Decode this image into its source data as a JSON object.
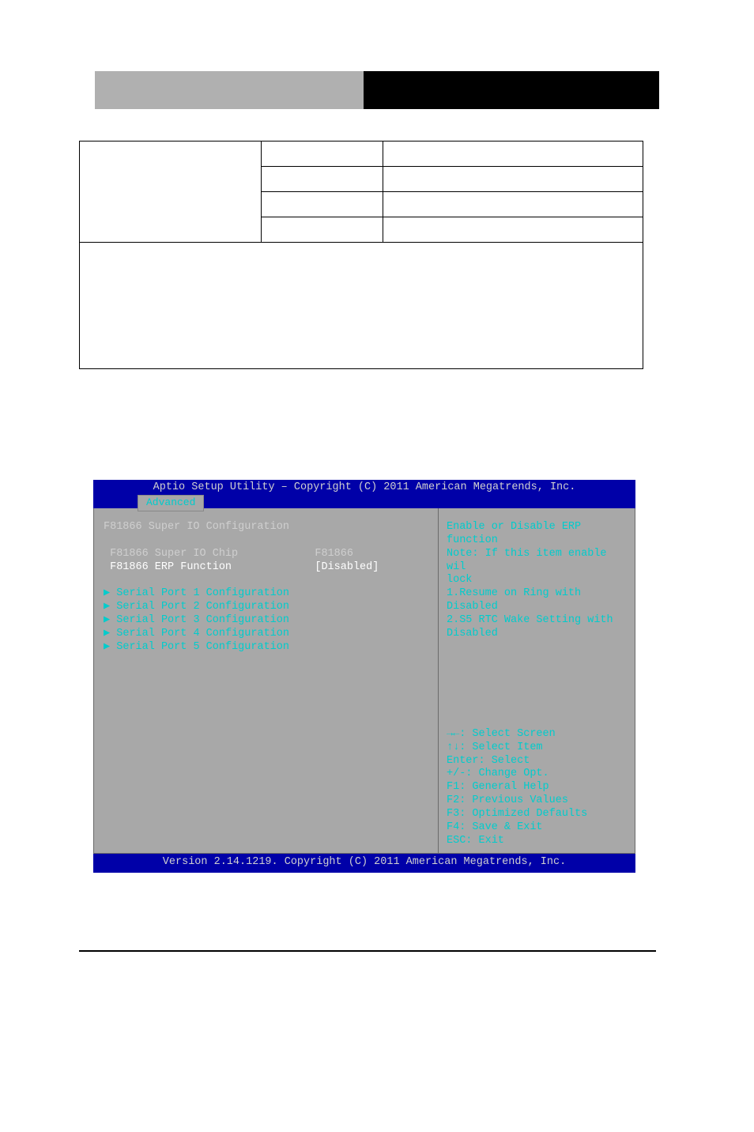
{
  "options_table": {
    "rows": [
      {
        "c1": "",
        "c2": "",
        "c3": ""
      },
      {
        "c1": "",
        "c2": "",
        "c3": ""
      },
      {
        "c1": "",
        "c2": "",
        "c3": ""
      },
      {
        "c1": "",
        "c2": "",
        "c3": ""
      }
    ]
  },
  "bios": {
    "title": "Aptio Setup Utility – Copyright (C) 2011 American Megatrends, Inc.",
    "tab": "Advanced",
    "heading": "F81866 Super IO Configuration",
    "rows": [
      {
        "label": "F81866 Super IO Chip",
        "value": "F81866",
        "sel": false
      },
      {
        "label": "F81866 ERP Function",
        "value": "[Disabled]",
        "sel": true
      }
    ],
    "submenus": [
      "Serial Port 1 Configuration",
      "Serial Port 2 Configuration",
      "Serial Port 3 Configuration",
      "Serial Port 4 Configuration",
      "Serial Port 5 Configuration"
    ],
    "info": [
      "Enable or Disable ERP function",
      "Note: If this item enable wil",
      "lock",
      "1.Resume on Ring with Disabled",
      "2.S5 RTC Wake Setting with",
      "Disabled"
    ],
    "hints": [
      "→←: Select Screen",
      "↑↓: Select Item",
      "Enter: Select",
      "+/-: Change Opt.",
      "F1: General Help",
      "F2: Previous Values",
      "F3: Optimized Defaults",
      "F4: Save & Exit",
      "ESC: Exit"
    ],
    "footer": "Version 2.14.1219. Copyright (C) 2011 American Megatrends, Inc.",
    "colors": {
      "bar_bg": "#0000a8",
      "panel_bg": "#a8a8a8",
      "text_cyan": "#00cccc",
      "text_light": "#d0d0d0",
      "text_white": "#ffffff"
    }
  }
}
